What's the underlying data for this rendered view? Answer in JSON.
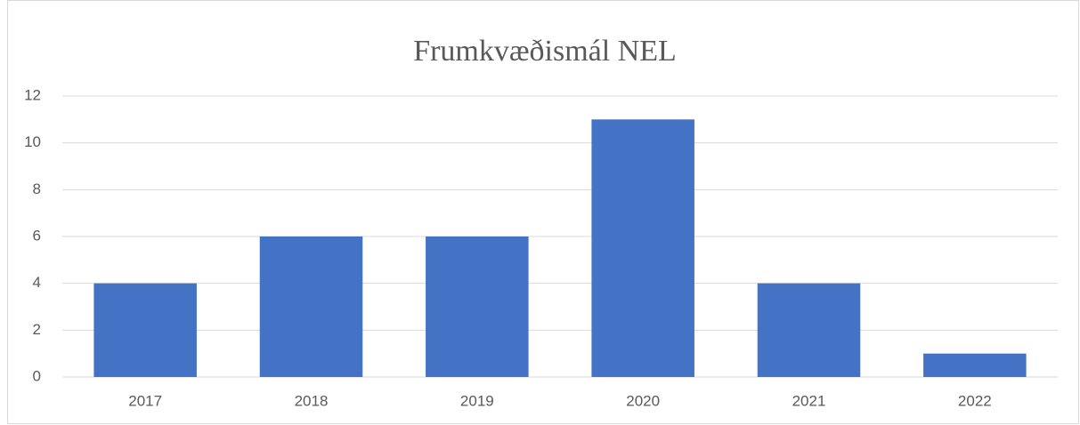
{
  "chart_data": {
    "type": "bar",
    "title": "Frumkvæðismál NEL",
    "categories": [
      "2017",
      "2018",
      "2019",
      "2020",
      "2021",
      "2022"
    ],
    "values": [
      4,
      6,
      6,
      11,
      4,
      1
    ],
    "color": "#4472c4",
    "ylim": [
      0,
      12
    ],
    "yticks": [
      0,
      2,
      4,
      6,
      8,
      10,
      12
    ],
    "grid": true
  }
}
